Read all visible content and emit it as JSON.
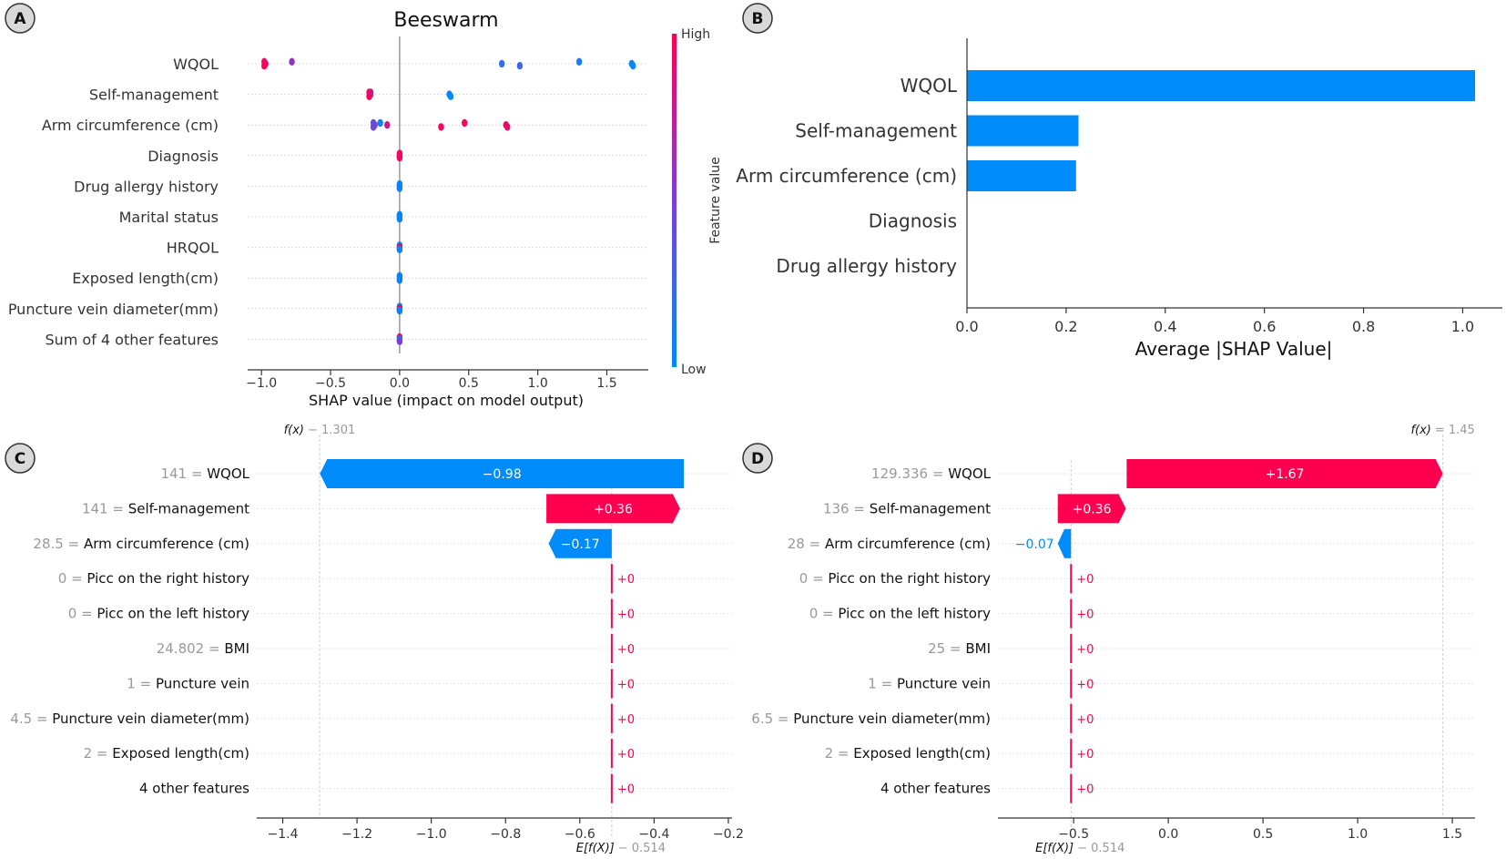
{
  "chart_data": [
    {
      "panel": "A",
      "type": "scatter",
      "subtype": "shap-beeswarm",
      "title": "Beeswarm",
      "xlabel": "SHAP value (impact on model output)",
      "xlim": [
        -1.1,
        1.8
      ],
      "xticks": [
        -1.0,
        -0.5,
        0.0,
        0.5,
        1.0,
        1.5
      ],
      "xtick_labels": [
        "−1.0",
        "−0.5",
        "0.0",
        "0.5",
        "1.0",
        "1.5"
      ],
      "colorbar": {
        "label": "Feature value",
        "high": "High",
        "low": "Low",
        "high_color": "#ff0051",
        "low_color": "#008bfb"
      },
      "features": [
        {
          "name": "WQOL",
          "points": [
            [
              -0.98,
              0.95
            ],
            [
              -0.97,
              0.9
            ],
            [
              -0.98,
              1.0
            ],
            [
              -0.78,
              0.6
            ],
            [
              0.74,
              0.2
            ],
            [
              0.87,
              0.25
            ],
            [
              1.3,
              0.1
            ],
            [
              1.68,
              0.05
            ],
            [
              1.69,
              0.0
            ]
          ]
        },
        {
          "name": "Self-management",
          "points": [
            [
              -0.22,
              0.95
            ],
            [
              -0.21,
              0.9
            ],
            [
              -0.22,
              1.0
            ],
            [
              -0.21,
              0.85
            ],
            [
              0.36,
              0.05
            ],
            [
              0.37,
              0.0
            ]
          ]
        },
        {
          "name": "Arm circumference (cm)",
          "points": [
            [
              -0.19,
              0.4
            ],
            [
              -0.18,
              0.5
            ],
            [
              -0.19,
              0.45
            ],
            [
              -0.14,
              0.05
            ],
            [
              -0.09,
              0.8
            ],
            [
              0.3,
              0.95
            ],
            [
              0.47,
              0.95
            ],
            [
              0.77,
              0.95
            ],
            [
              0.78,
              0.9
            ]
          ]
        },
        {
          "name": "Diagnosis",
          "points": [
            [
              0.0,
              0.95
            ],
            [
              0.0,
              0.95
            ],
            [
              0.0,
              0.95
            ],
            [
              0.0,
              0.95
            ],
            [
              0.0,
              0.95
            ],
            [
              0.0,
              0.95
            ]
          ]
        },
        {
          "name": "Drug allergy history",
          "points": [
            [
              0.0,
              0.05
            ],
            [
              0.0,
              0.05
            ],
            [
              0.0,
              0.05
            ],
            [
              0.0,
              0.05
            ],
            [
              0.0,
              0.05
            ],
            [
              0.0,
              0.05
            ]
          ]
        },
        {
          "name": "Marital status",
          "points": [
            [
              0.0,
              0.05
            ],
            [
              0.0,
              0.05
            ],
            [
              0.0,
              0.05
            ],
            [
              0.0,
              0.05
            ],
            [
              0.0,
              0.05
            ],
            [
              0.0,
              0.05
            ]
          ]
        },
        {
          "name": "HRQOL",
          "points": [
            [
              0.0,
              0.95
            ],
            [
              0.0,
              0.05
            ],
            [
              0.0,
              0.95
            ],
            [
              0.0,
              0.05
            ],
            [
              0.0,
              0.95
            ],
            [
              0.0,
              0.05
            ]
          ]
        },
        {
          "name": "Exposed length(cm)",
          "points": [
            [
              0.0,
              0.05
            ],
            [
              0.0,
              0.05
            ],
            [
              0.0,
              0.05
            ],
            [
              0.0,
              0.05
            ],
            [
              0.0,
              0.05
            ],
            [
              0.0,
              0.05
            ]
          ]
        },
        {
          "name": "Puncture vein diameter(mm)",
          "points": [
            [
              0.0,
              0.05
            ],
            [
              0.0,
              0.95
            ],
            [
              0.0,
              0.5
            ],
            [
              0.0,
              0.05
            ],
            [
              0.0,
              0.95
            ],
            [
              0.0,
              0.05
            ]
          ]
        },
        {
          "name": "Sum of 4 other features",
          "points": [
            [
              0.0,
              0.95
            ],
            [
              0.0,
              0.05
            ],
            [
              0.0,
              0.5
            ],
            [
              0.0,
              0.95
            ],
            [
              0.0,
              0.05
            ],
            [
              0.0,
              0.5
            ]
          ]
        }
      ]
    },
    {
      "panel": "B",
      "type": "bar",
      "orientation": "horizontal",
      "categories": [
        "WQOL",
        "Self-management",
        "Arm circumference (cm)",
        "Diagnosis",
        "Drug allergy history"
      ],
      "values": [
        1.025,
        0.225,
        0.22,
        0.0,
        0.0
      ],
      "xlabel": "Average |SHAP Value|",
      "xlim": [
        0.0,
        1.08
      ],
      "xticks": [
        0.0,
        0.2,
        0.4,
        0.6,
        0.8,
        1.0
      ],
      "xtick_labels": [
        "0.0",
        "0.2",
        "0.4",
        "0.6",
        "0.8",
        "1.0"
      ],
      "bar_color": "#008bfb"
    },
    {
      "panel": "C",
      "type": "bar",
      "subtype": "shap-waterfall",
      "fx_label": "f(x)",
      "fx_value_text": "− 1.301",
      "fx_value": -1.301,
      "ex_label": "E[f(X)]",
      "ex_value_text": "− 0.514",
      "base_value": -0.514,
      "xlim": [
        -1.47,
        -0.19
      ],
      "xticks": [
        -1.4,
        -1.2,
        -1.0,
        -0.8,
        -0.6,
        -0.4,
        -0.2
      ],
      "xtick_labels": [
        "−1.4",
        "−1.2",
        "−1.0",
        "−0.8",
        "−0.6",
        "−0.4",
        "−0.2"
      ],
      "rows": [
        {
          "value_text": "141",
          "feature": "WQOL",
          "shap": -0.98,
          "label": "−0.98",
          "start": -0.32
        },
        {
          "value_text": "141",
          "feature": "Self-management",
          "shap": 0.36,
          "label": "+0.36",
          "start": -0.69
        },
        {
          "value_text": "28.5",
          "feature": "Arm circumference (cm)",
          "shap": -0.17,
          "label": "−0.17",
          "start": -0.514
        },
        {
          "value_text": "0",
          "feature": "Picc on the right history",
          "shap": 0,
          "label": "+0",
          "start": -0.514
        },
        {
          "value_text": "0",
          "feature": "Picc on the left  history",
          "shap": 0,
          "label": "+0",
          "start": -0.514
        },
        {
          "value_text": "24.802",
          "feature": "BMI",
          "shap": 0,
          "label": "+0",
          "start": -0.514
        },
        {
          "value_text": "1",
          "feature": "Puncture vein",
          "shap": 0,
          "label": "+0",
          "start": -0.514
        },
        {
          "value_text": "4.5",
          "feature": "Puncture vein diameter(mm)",
          "shap": 0,
          "label": "+0",
          "start": -0.514
        },
        {
          "value_text": "2",
          "feature": "Exposed length(cm)",
          "shap": 0,
          "label": "+0",
          "start": -0.514
        },
        {
          "value_text": "",
          "feature": "4 other features",
          "shap": 0,
          "label": "+0",
          "start": -0.514
        }
      ]
    },
    {
      "panel": "D",
      "type": "bar",
      "subtype": "shap-waterfall",
      "fx_label": "f(x)",
      "fx_value_text": "= 1.45",
      "fx_value": 1.45,
      "ex_label": "E[f(X)]",
      "ex_value_text": "− 0.514",
      "base_value": -0.514,
      "xlim": [
        -0.9,
        1.62
      ],
      "xticks": [
        -0.5,
        0.0,
        0.5,
        1.0,
        1.5
      ],
      "xtick_labels": [
        "−0.5",
        "0.0",
        "0.5",
        "1.0",
        "1.5"
      ],
      "rows": [
        {
          "value_text": "129.336",
          "feature": "WQOL",
          "shap": 1.67,
          "label": "+1.67",
          "start": -0.22
        },
        {
          "value_text": "136",
          "feature": "Self-management",
          "shap": 0.36,
          "label": "+0.36",
          "start": -0.584
        },
        {
          "value_text": "28",
          "feature": "Arm circumference (cm)",
          "shap": -0.07,
          "label": "−0.07",
          "start": -0.514
        },
        {
          "value_text": "0",
          "feature": "Picc on the right history",
          "shap": 0,
          "label": "+0",
          "start": -0.514
        },
        {
          "value_text": "0",
          "feature": "Picc on the left  history",
          "shap": 0,
          "label": "+0",
          "start": -0.514
        },
        {
          "value_text": "25",
          "feature": "BMI",
          "shap": 0,
          "label": "+0",
          "start": -0.514
        },
        {
          "value_text": "1",
          "feature": "Puncture vein",
          "shap": 0,
          "label": "+0",
          "start": -0.514
        },
        {
          "value_text": "6.5",
          "feature": "Puncture vein diameter(mm)",
          "shap": 0,
          "label": "+0",
          "start": -0.514
        },
        {
          "value_text": "2",
          "feature": "Exposed length(cm)",
          "shap": 0,
          "label": "+0",
          "start": -0.514
        },
        {
          "value_text": "",
          "feature": "4 other features",
          "shap": 0,
          "label": "+0",
          "start": -0.514
        }
      ]
    }
  ],
  "panel_letters": [
    "A",
    "B",
    "C",
    "D"
  ]
}
